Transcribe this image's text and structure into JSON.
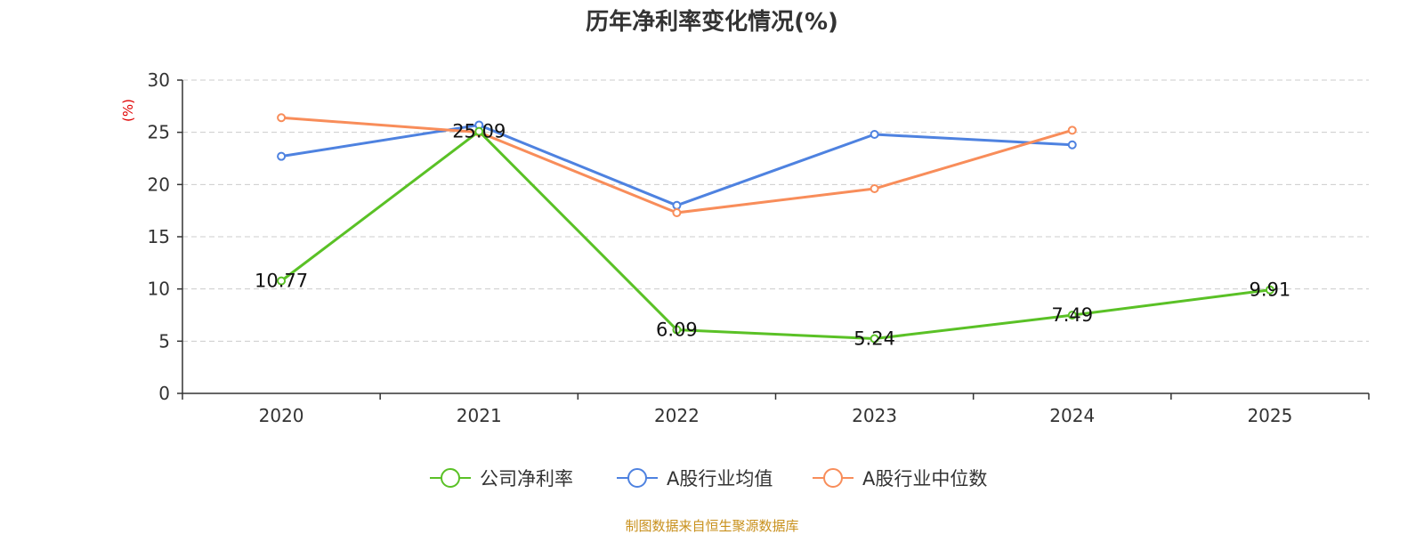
{
  "chart_data": {
    "type": "line",
    "title": "历年净利率变化情况(%)",
    "xlabel": "",
    "ylabel": "(%)",
    "categories": [
      "2020",
      "2021",
      "2022",
      "2023",
      "2024",
      "2025"
    ],
    "ylim": [
      0,
      30
    ],
    "yticks": [
      0,
      5,
      10,
      15,
      20,
      25,
      30
    ],
    "grid": true,
    "legend_position": "bottom",
    "series": [
      {
        "name": "公司净利率",
        "color": "#5ac126",
        "show_labels": true,
        "values": [
          10.77,
          25.09,
          6.09,
          5.24,
          7.49,
          9.91
        ],
        "labels": [
          "10.77",
          "25.09",
          "6.09",
          "5.24",
          "7.49",
          "9.91"
        ]
      },
      {
        "name": "A股行业均值",
        "color": "#4e82e0",
        "show_labels": false,
        "values": [
          22.7,
          25.7,
          18.0,
          24.8,
          23.8,
          null
        ]
      },
      {
        "name": "A股行业中位数",
        "color": "#f88d5a",
        "show_labels": false,
        "values": [
          26.4,
          25.0,
          17.3,
          19.6,
          25.2,
          null
        ]
      }
    ],
    "source": "制图数据来自恒生聚源数据库"
  }
}
